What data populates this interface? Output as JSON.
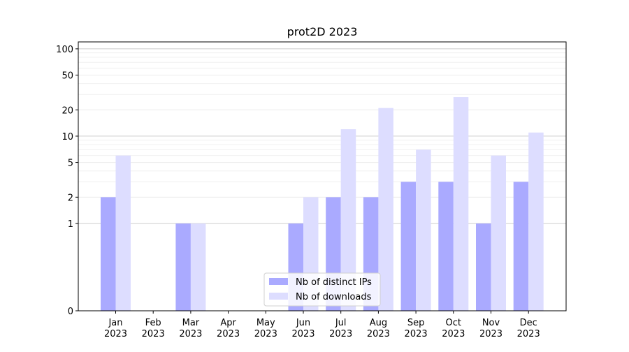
{
  "chart_data": {
    "type": "bar",
    "title": "prot2D 2023",
    "xlabel": "",
    "ylabel": "",
    "yscale": "symlog",
    "ylim": [
      0,
      120
    ],
    "yticks": [
      0,
      1,
      2,
      5,
      10,
      20,
      50,
      100
    ],
    "grid": "horizontal",
    "legend_position": "bottom-center",
    "categories": [
      {
        "month": "Jan",
        "year": "2023"
      },
      {
        "month": "Feb",
        "year": "2023"
      },
      {
        "month": "Mar",
        "year": "2023"
      },
      {
        "month": "Apr",
        "year": "2023"
      },
      {
        "month": "May",
        "year": "2023"
      },
      {
        "month": "Jun",
        "year": "2023"
      },
      {
        "month": "Jul",
        "year": "2023"
      },
      {
        "month": "Aug",
        "year": "2023"
      },
      {
        "month": "Sep",
        "year": "2023"
      },
      {
        "month": "Oct",
        "year": "2023"
      },
      {
        "month": "Nov",
        "year": "2023"
      },
      {
        "month": "Dec",
        "year": "2023"
      }
    ],
    "series": [
      {
        "name": "Nb of distinct IPs",
        "color": "#aaaaff",
        "values": [
          2,
          0,
          1,
          0,
          0,
          1,
          2,
          2,
          3,
          3,
          1,
          3
        ]
      },
      {
        "name": "Nb of downloads",
        "color": "#ddddff",
        "values": [
          6,
          0,
          1,
          0,
          0,
          2,
          12,
          21,
          7,
          28,
          6,
          11
        ]
      }
    ]
  }
}
